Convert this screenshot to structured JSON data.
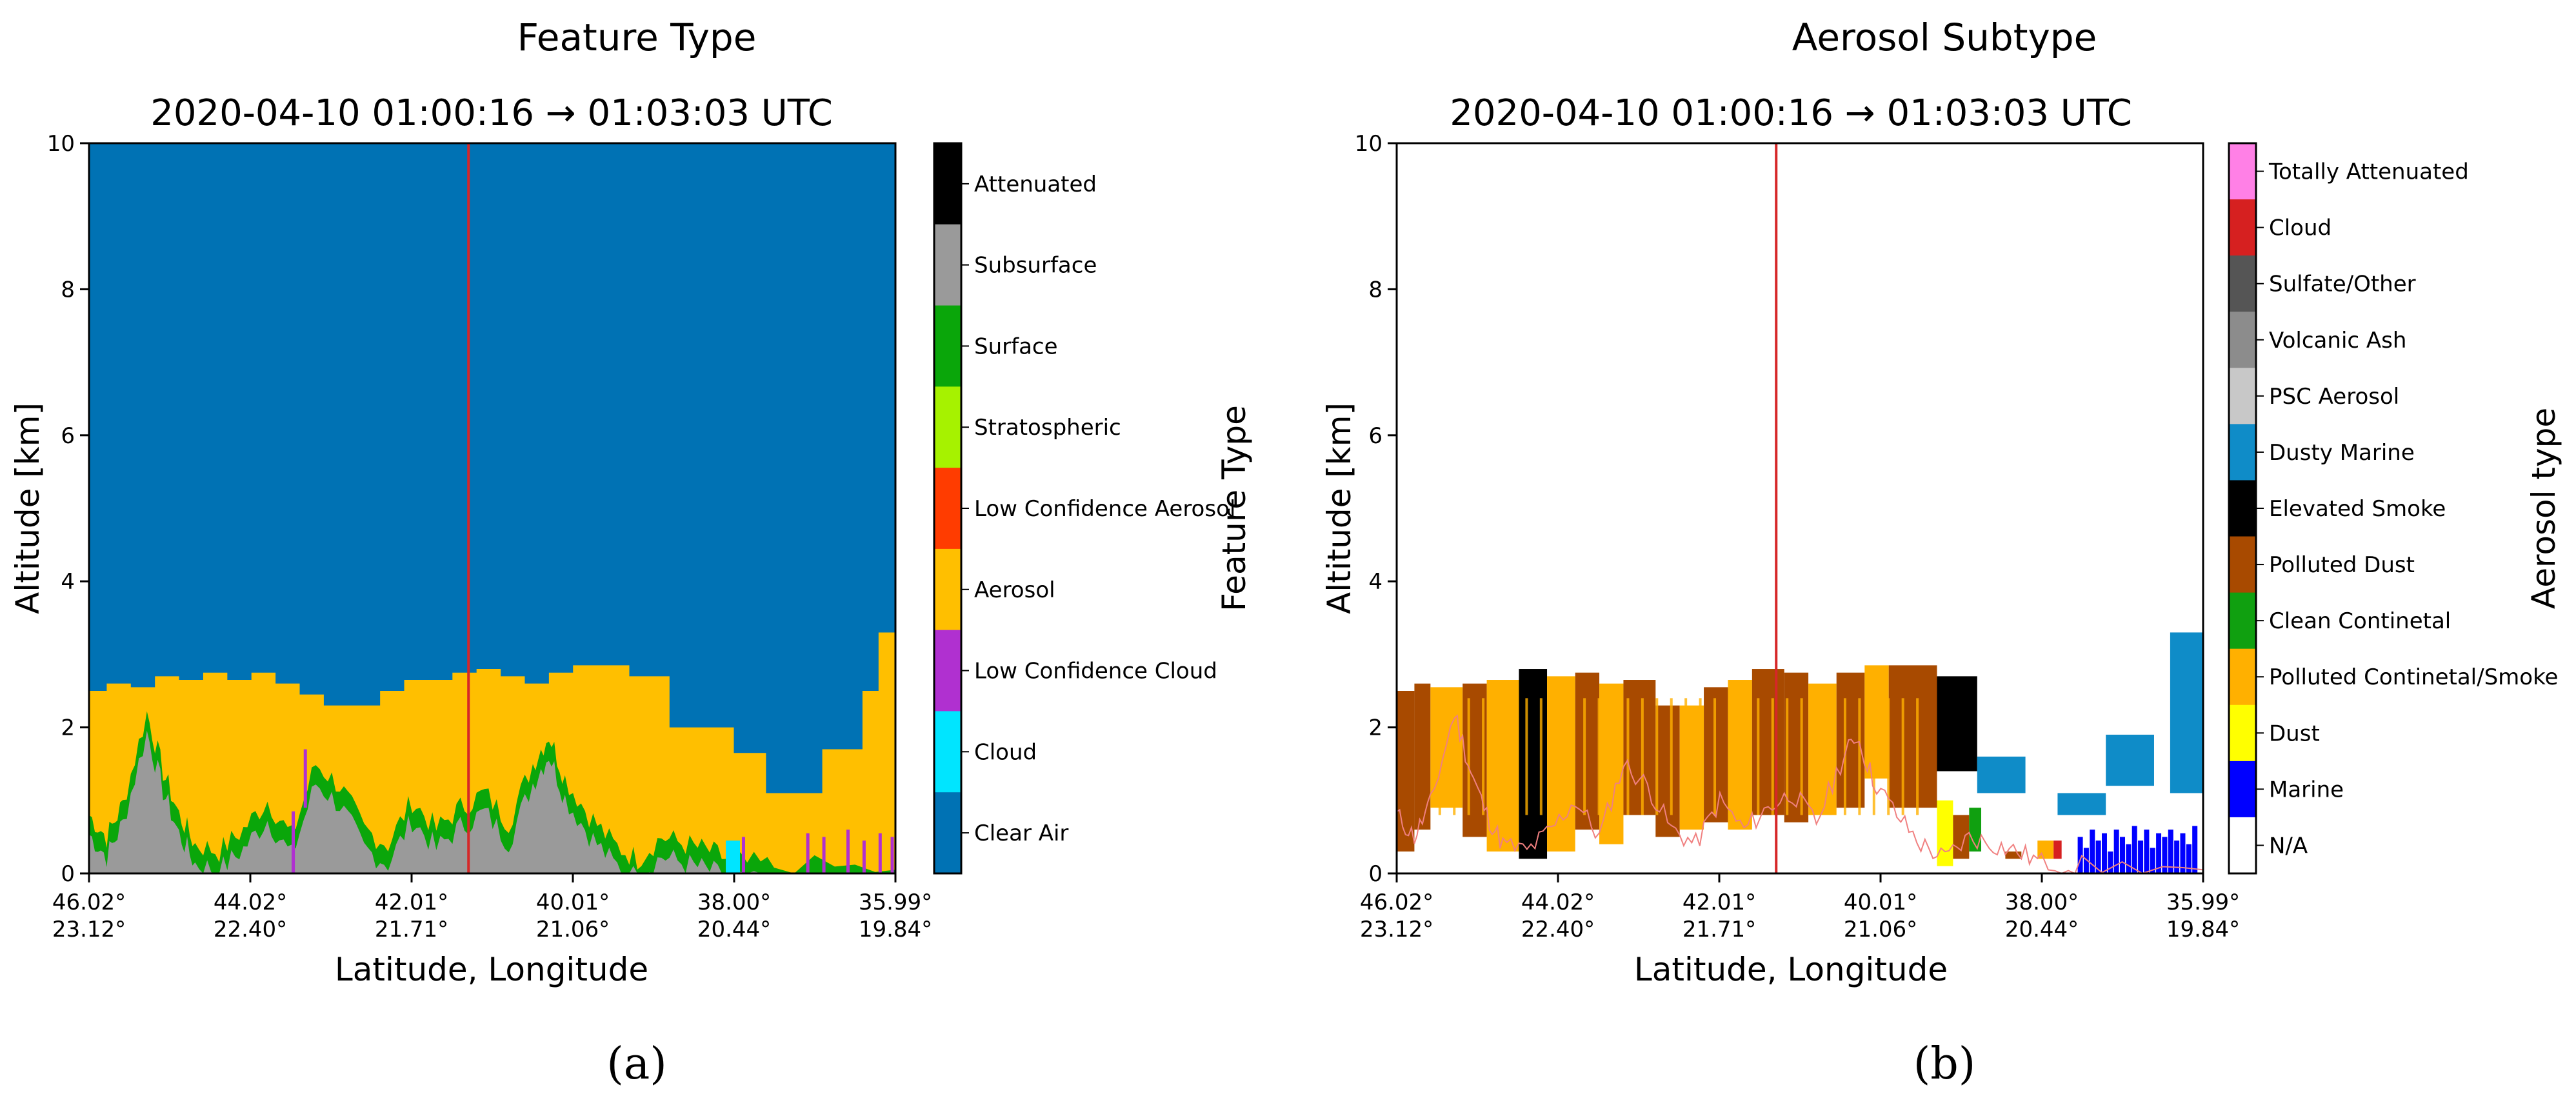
{
  "chart_data": [
    {
      "type": "heatmap",
      "panel_label": "(a)",
      "title": "Feature Type",
      "subtitle": "2020-04-10 01:00:16 → 01:03:03 UTC",
      "xlabel": "Latitude, Longitude",
      "ylabel": "Altitude [km]",
      "colorbar_label": "Feature Type",
      "ylim": [
        0,
        10
      ],
      "yticks": [
        0,
        2,
        4,
        6,
        8,
        10
      ],
      "xlim": [
        46.02,
        35.99
      ],
      "xticks": [
        {
          "lat": "46.02°",
          "lon": "23.12°"
        },
        {
          "lat": "44.02°",
          "lon": "22.40°"
        },
        {
          "lat": "42.01°",
          "lon": "21.71°"
        },
        {
          "lat": "40.01°",
          "lon": "21.06°"
        },
        {
          "lat": "38.00°",
          "lon": "20.44°"
        },
        {
          "lat": "35.99°",
          "lon": "19.84°"
        }
      ],
      "marker_line": {
        "lat": 41.3,
        "color": "#d62728"
      },
      "background_class": "Clear Air",
      "classes": [
        {
          "name": "Attenuated",
          "color": "#000000"
        },
        {
          "name": "Subsurface",
          "color": "#9a9a9a"
        },
        {
          "name": "Surface",
          "color": "#0aa60a"
        },
        {
          "name": "Stratospheric",
          "color": "#a6f200"
        },
        {
          "name": "Low Confidence Aerosol",
          "color": "#ff3c00"
        },
        {
          "name": "Aerosol",
          "color": "#ffbf00"
        },
        {
          "name": "Low Confidence Cloud",
          "color": "#b030d0"
        },
        {
          "name": "Cloud",
          "color": "#00e5ff"
        },
        {
          "name": "Clear Air",
          "color": "#0072b4"
        }
      ],
      "aerosol_top_profile": [
        [
          46.02,
          2.5
        ],
        [
          45.8,
          2.6
        ],
        [
          45.5,
          2.55
        ],
        [
          45.2,
          2.7
        ],
        [
          44.9,
          2.65
        ],
        [
          44.6,
          2.75
        ],
        [
          44.3,
          2.65
        ],
        [
          44.0,
          2.75
        ],
        [
          43.7,
          2.6
        ],
        [
          43.4,
          2.45
        ],
        [
          43.1,
          2.3
        ],
        [
          42.7,
          2.3
        ],
        [
          42.4,
          2.5
        ],
        [
          42.1,
          2.65
        ],
        [
          41.8,
          2.65
        ],
        [
          41.5,
          2.75
        ],
        [
          41.2,
          2.8
        ],
        [
          40.9,
          2.7
        ],
        [
          40.6,
          2.6
        ],
        [
          40.3,
          2.75
        ],
        [
          40.0,
          2.85
        ],
        [
          39.6,
          2.85
        ],
        [
          39.3,
          2.7
        ],
        [
          39.0,
          2.7
        ],
        [
          38.8,
          2.0
        ],
        [
          38.4,
          2.0
        ],
        [
          38.0,
          1.65
        ],
        [
          37.6,
          1.1
        ],
        [
          37.2,
          1.1
        ],
        [
          36.9,
          1.7
        ],
        [
          36.6,
          1.7
        ],
        [
          36.4,
          2.5
        ],
        [
          36.2,
          3.3
        ],
        [
          35.99,
          3.3
        ]
      ],
      "surface_signal_profile": [
        [
          46.02,
          0.8
        ],
        [
          45.8,
          0.5
        ],
        [
          45.6,
          0.95
        ],
        [
          45.3,
          2.2
        ],
        [
          45.1,
          1.4
        ],
        [
          44.9,
          0.8
        ],
        [
          44.7,
          0.4
        ],
        [
          44.4,
          0.3
        ],
        [
          44.1,
          0.6
        ],
        [
          43.8,
          1.0
        ],
        [
          43.5,
          0.5
        ],
        [
          43.2,
          1.5
        ],
        [
          42.9,
          1.2
        ],
        [
          42.6,
          0.6
        ],
        [
          42.3,
          0.4
        ],
        [
          42.0,
          1.0
        ],
        [
          41.7,
          0.6
        ],
        [
          41.4,
          0.9
        ],
        [
          41.1,
          1.1
        ],
        [
          40.8,
          0.7
        ],
        [
          40.5,
          1.5
        ],
        [
          40.3,
          1.9
        ],
        [
          40.1,
          1.3
        ],
        [
          39.8,
          0.8
        ],
        [
          39.5,
          0.4
        ],
        [
          39.2,
          0.2
        ],
        [
          38.9,
          0.5
        ],
        [
          38.6,
          0.4
        ],
        [
          38.3,
          0.3
        ],
        [
          38.0,
          0.15
        ],
        [
          37.5,
          0.1
        ],
        [
          35.99,
          0.05
        ]
      ]
    },
    {
      "type": "heatmap",
      "panel_label": "(b)",
      "title": "Aerosol Subtype",
      "subtitle": "2020-04-10 01:00:16 → 01:03:03 UTC",
      "xlabel": "Latitude, Longitude",
      "ylabel": "Altitude [km]",
      "colorbar_label": "Aerosol type",
      "ylim": [
        0,
        10
      ],
      "yticks": [
        0,
        2,
        4,
        6,
        8,
        10
      ],
      "xlim": [
        46.02,
        35.99
      ],
      "xticks": [
        {
          "lat": "46.02°",
          "lon": "23.12°"
        },
        {
          "lat": "44.02°",
          "lon": "22.40°"
        },
        {
          "lat": "42.01°",
          "lon": "21.71°"
        },
        {
          "lat": "40.01°",
          "lon": "21.06°"
        },
        {
          "lat": "38.00°",
          "lon": "20.44°"
        },
        {
          "lat": "35.99°",
          "lon": "19.84°"
        }
      ],
      "marker_line": {
        "lat": 41.3,
        "color": "#d62728"
      },
      "background_class": "N/A",
      "classes": [
        {
          "name": "Totally Attenuated",
          "color": "#ff80e6"
        },
        {
          "name": "Cloud",
          "color": "#d62020"
        },
        {
          "name": "Sulfate/Other",
          "color": "#555555"
        },
        {
          "name": "Volcanic Ash",
          "color": "#8c8c8c"
        },
        {
          "name": "PSC Aerosol",
          "color": "#c8c8c8"
        },
        {
          "name": "Dusty Marine",
          "color": "#0f8cc8"
        },
        {
          "name": "Elevated Smoke",
          "color": "#000000"
        },
        {
          "name": "Polluted Dust",
          "color": "#a84a00"
        },
        {
          "name": "Clean Continetal",
          "color": "#10a010"
        },
        {
          "name": "Polluted Continetal/Smoke",
          "color": "#ffb000"
        },
        {
          "name": "Dust",
          "color": "#ffff00"
        },
        {
          "name": "Marine",
          "color": "#0000ff"
        },
        {
          "name": "N/A",
          "color": "#ffffff"
        }
      ],
      "segments": [
        {
          "lat_from": 46.02,
          "lat_to": 45.8,
          "bottom": 0.3,
          "top": 2.5,
          "class": "Polluted Dust"
        },
        {
          "lat_from": 45.8,
          "lat_to": 45.6,
          "bottom": 0.6,
          "top": 2.6,
          "class": "Polluted Dust"
        },
        {
          "lat_from": 45.6,
          "lat_to": 45.2,
          "bottom": 0.9,
          "top": 2.55,
          "class": "Polluted Continetal/Smoke"
        },
        {
          "lat_from": 45.2,
          "lat_to": 44.9,
          "bottom": 0.5,
          "top": 2.6,
          "class": "Polluted Dust"
        },
        {
          "lat_from": 44.9,
          "lat_to": 44.5,
          "bottom": 0.3,
          "top": 2.65,
          "class": "Polluted Continetal/Smoke"
        },
        {
          "lat_from": 44.5,
          "lat_to": 44.15,
          "bottom": 0.2,
          "top": 2.8,
          "class": "Elevated Smoke"
        },
        {
          "lat_from": 44.15,
          "lat_to": 43.8,
          "bottom": 0.3,
          "top": 2.7,
          "class": "Polluted Continetal/Smoke"
        },
        {
          "lat_from": 43.8,
          "lat_to": 43.5,
          "bottom": 0.6,
          "top": 2.75,
          "class": "Polluted Dust"
        },
        {
          "lat_from": 43.5,
          "lat_to": 43.2,
          "bottom": 0.4,
          "top": 2.6,
          "class": "Polluted Continetal/Smoke"
        },
        {
          "lat_from": 43.2,
          "lat_to": 42.8,
          "bottom": 0.8,
          "top": 2.65,
          "class": "Polluted Dust"
        },
        {
          "lat_from": 42.8,
          "lat_to": 42.5,
          "bottom": 0.5,
          "top": 2.3,
          "class": "Polluted Dust"
        },
        {
          "lat_from": 42.5,
          "lat_to": 42.2,
          "bottom": 0.6,
          "top": 2.3,
          "class": "Polluted Continetal/Smoke"
        },
        {
          "lat_from": 42.2,
          "lat_to": 41.9,
          "bottom": 0.7,
          "top": 2.55,
          "class": "Polluted Dust"
        },
        {
          "lat_from": 41.9,
          "lat_to": 41.6,
          "bottom": 0.6,
          "top": 2.65,
          "class": "Polluted Continetal/Smoke"
        },
        {
          "lat_from": 41.6,
          "lat_to": 41.2,
          "bottom": 0.8,
          "top": 2.8,
          "class": "Polluted Dust"
        },
        {
          "lat_from": 41.2,
          "lat_to": 40.9,
          "bottom": 0.7,
          "top": 2.75,
          "class": "Polluted Dust"
        },
        {
          "lat_from": 40.9,
          "lat_to": 40.55,
          "bottom": 0.8,
          "top": 2.6,
          "class": "Polluted Continetal/Smoke"
        },
        {
          "lat_from": 40.55,
          "lat_to": 40.2,
          "bottom": 0.9,
          "top": 2.75,
          "class": "Polluted Dust"
        },
        {
          "lat_from": 40.2,
          "lat_to": 39.9,
          "bottom": 1.3,
          "top": 2.85,
          "class": "Polluted Continetal/Smoke"
        },
        {
          "lat_from": 39.9,
          "lat_to": 39.3,
          "bottom": 0.9,
          "top": 2.85,
          "class": "Polluted Dust"
        },
        {
          "lat_from": 39.3,
          "lat_to": 38.8,
          "bottom": 1.4,
          "top": 2.7,
          "class": "Elevated Smoke"
        },
        {
          "lat_from": 38.8,
          "lat_to": 38.2,
          "bottom": 1.1,
          "top": 1.6,
          "class": "Dusty Marine"
        },
        {
          "lat_from": 37.8,
          "lat_to": 37.2,
          "bottom": 0.8,
          "top": 1.1,
          "class": "Dusty Marine"
        },
        {
          "lat_from": 37.2,
          "lat_to": 36.6,
          "bottom": 1.2,
          "top": 1.9,
          "class": "Dusty Marine"
        },
        {
          "lat_from": 36.4,
          "lat_to": 35.99,
          "bottom": 1.1,
          "top": 3.3,
          "class": "Dusty Marine"
        },
        {
          "lat_from": 39.3,
          "lat_to": 39.1,
          "bottom": 0.1,
          "top": 1.0,
          "class": "Dust"
        },
        {
          "lat_from": 39.1,
          "lat_to": 38.9,
          "bottom": 0.2,
          "top": 0.8,
          "class": "Polluted Dust"
        },
        {
          "lat_from": 38.9,
          "lat_to": 38.75,
          "bottom": 0.3,
          "top": 0.9,
          "class": "Clean Continetal"
        },
        {
          "lat_from": 38.45,
          "lat_to": 38.25,
          "bottom": 0.2,
          "top": 0.3,
          "class": "Polluted Dust"
        },
        {
          "lat_from": 38.05,
          "lat_to": 37.85,
          "bottom": 0.2,
          "top": 0.45,
          "class": "Polluted Continetal/Smoke"
        },
        {
          "lat_from": 37.85,
          "lat_to": 37.75,
          "bottom": 0.2,
          "top": 0.45,
          "class": "Cloud"
        }
      ],
      "marine_column_tops": [
        0.5,
        0.35,
        0.6,
        0.45,
        0.55,
        0.3,
        0.6,
        0.5,
        0.4,
        0.65,
        0.45,
        0.6,
        0.35,
        0.55,
        0.5,
        0.6,
        0.45,
        0.55,
        0.4,
        0.65
      ]
    }
  ]
}
